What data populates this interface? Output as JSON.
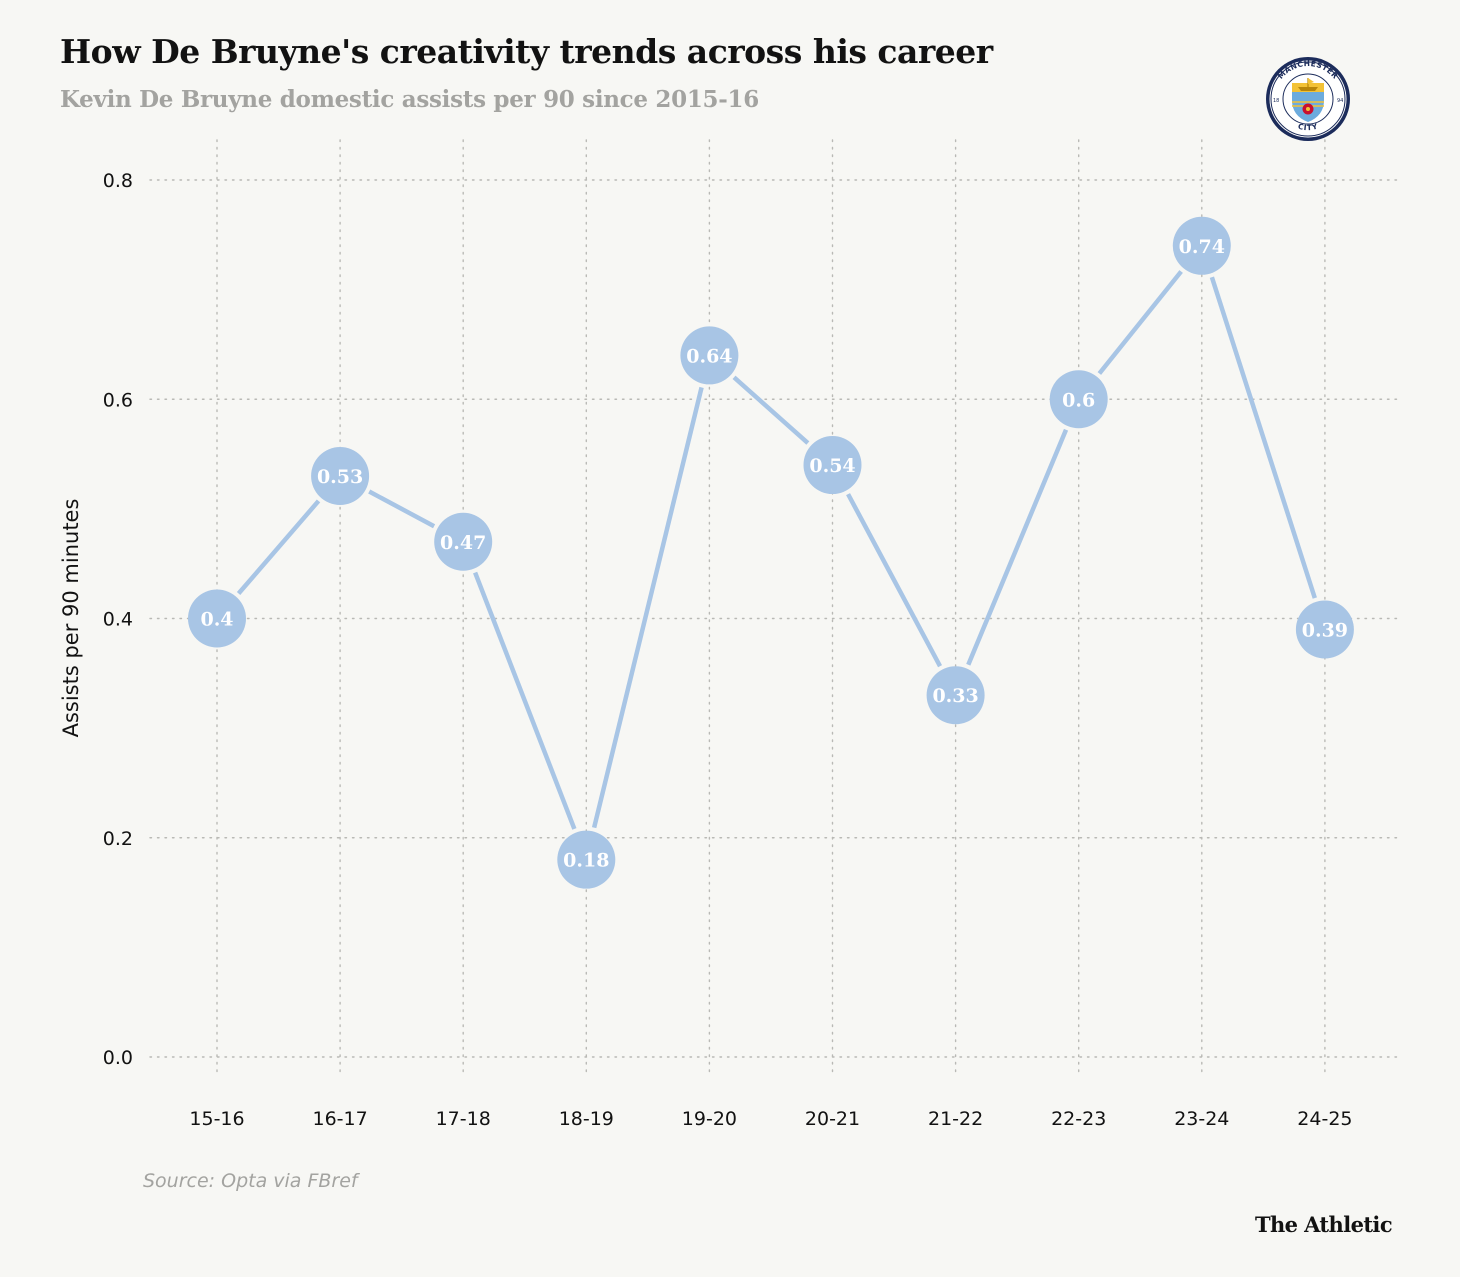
{
  "header": {
    "title": "How De Bruyne's creativity trends across his career",
    "subtitle": "Kevin De Bruyne domestic assists per 90 since 2015-16"
  },
  "logo": {
    "icon": "manchester-city-crest-icon",
    "top_text": "MANCHESTER",
    "bottom_text": "CITY",
    "year_left": "18",
    "year_right": "94"
  },
  "chart_data": {
    "type": "line",
    "title": "How De Bruyne's creativity trends across his career",
    "subtitle": "Kevin De Bruyne domestic assists per 90 since 2015-16",
    "xlabel": "",
    "ylabel": "Assists per 90 minutes",
    "categories": [
      "15-16",
      "16-17",
      "17-18",
      "18-19",
      "19-20",
      "20-21",
      "21-22",
      "22-23",
      "23-24",
      "24-25"
    ],
    "values": [
      0.4,
      0.53,
      0.47,
      0.18,
      0.64,
      0.54,
      0.33,
      0.6,
      0.74,
      0.39
    ],
    "data_labels": [
      "0.4",
      "0.53",
      "0.47",
      "0.18",
      "0.64",
      "0.54",
      "0.33",
      "0.6",
      "0.74",
      "0.39"
    ],
    "ylim": [
      0,
      0.8
    ],
    "yticks": [
      0.0,
      0.2,
      0.4,
      0.6,
      0.8
    ],
    "ytick_labels": [
      "0.0",
      "0.2",
      "0.4",
      "0.6",
      "0.8"
    ],
    "grid": true,
    "color": "#a8c5e5"
  },
  "footer": {
    "source": "Source: Opta via FBref",
    "brand": "The Athletic"
  }
}
